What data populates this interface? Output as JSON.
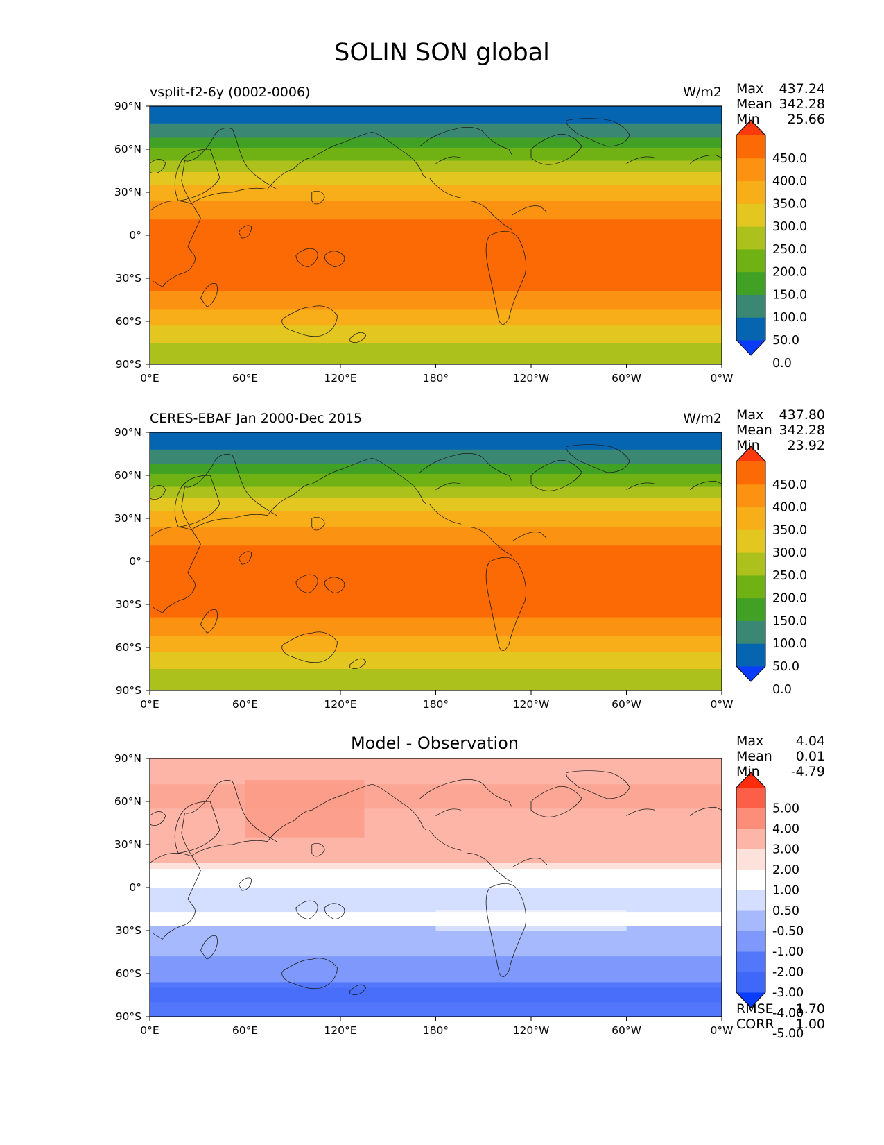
{
  "figure_title": "SOLIN SON global",
  "chart_data": [
    {
      "type": "heatmap",
      "name": "test",
      "title_left": "vsplit-f2-6y (0002-0006)",
      "units": "W/m2",
      "stats": [
        {
          "label": "Max",
          "value": "437.24"
        },
        {
          "label": "Mean",
          "value": "342.28"
        },
        {
          "label": "Min",
          "value": "25.66"
        }
      ],
      "x_ticks": [
        "0°E",
        "60°E",
        "120°E",
        "180°",
        "120°W",
        "60°W",
        "0°W"
      ],
      "y_ticks": [
        "90°N",
        "60°N",
        "30°N",
        "0°",
        "30°S",
        "60°S",
        "90°S"
      ],
      "lat_range": [
        -90,
        90
      ],
      "bands": [
        {
          "lat_top": 90,
          "lat_bottom": 78,
          "color": "#0565b0"
        },
        {
          "lat_top": 78,
          "lat_bottom": 68,
          "color": "#3a8873"
        },
        {
          "lat_top": 68,
          "lat_bottom": 61,
          "color": "#41a125"
        },
        {
          "lat_top": 61,
          "lat_bottom": 52,
          "color": "#70b114"
        },
        {
          "lat_top": 52,
          "lat_bottom": 44,
          "color": "#adc11c"
        },
        {
          "lat_top": 44,
          "lat_bottom": 35,
          "color": "#e4c620"
        },
        {
          "lat_top": 35,
          "lat_bottom": 24,
          "color": "#f8ae18"
        },
        {
          "lat_top": 24,
          "lat_bottom": 11,
          "color": "#fb9211"
        },
        {
          "lat_top": 11,
          "lat_bottom": -39,
          "color": "#fb6a04"
        },
        {
          "lat_top": -39,
          "lat_bottom": -52,
          "color": "#fb9211"
        },
        {
          "lat_top": -52,
          "lat_bottom": -63,
          "color": "#f8ae18"
        },
        {
          "lat_top": -63,
          "lat_bottom": -75,
          "color": "#e4c620"
        },
        {
          "lat_top": -75,
          "lat_bottom": -90,
          "color": "#adc11c"
        }
      ],
      "colorbar": {
        "labels": [
          "450.0",
          "400.0",
          "350.0",
          "300.0",
          "250.0",
          "200.0",
          "150.0",
          "100.0",
          "50.0",
          "0.0"
        ],
        "colors": [
          "#0a3cfb",
          "#0565b0",
          "#3a8873",
          "#41a125",
          "#70b114",
          "#adc11c",
          "#e4c620",
          "#f8ae18",
          "#fb9211",
          "#fb6a04",
          "#fd3a0e"
        ]
      }
    },
    {
      "type": "heatmap",
      "name": "reference",
      "title_left": "CERES-EBAF Jan 2000-Dec 2015",
      "units": "W/m2",
      "stats": [
        {
          "label": "Max",
          "value": "437.80"
        },
        {
          "label": "Mean",
          "value": "342.28"
        },
        {
          "label": "Min",
          "value": "23.92"
        }
      ],
      "x_ticks": [
        "0°E",
        "60°E",
        "120°E",
        "180°",
        "120°W",
        "60°W",
        "0°W"
      ],
      "y_ticks": [
        "90°N",
        "60°N",
        "30°N",
        "0°",
        "30°S",
        "60°S",
        "90°S"
      ],
      "lat_range": [
        -90,
        90
      ],
      "bands": [
        {
          "lat_top": 90,
          "lat_bottom": 78,
          "color": "#0565b0"
        },
        {
          "lat_top": 78,
          "lat_bottom": 68,
          "color": "#3a8873"
        },
        {
          "lat_top": 68,
          "lat_bottom": 61,
          "color": "#41a125"
        },
        {
          "lat_top": 61,
          "lat_bottom": 52,
          "color": "#70b114"
        },
        {
          "lat_top": 52,
          "lat_bottom": 44,
          "color": "#adc11c"
        },
        {
          "lat_top": 44,
          "lat_bottom": 35,
          "color": "#e4c620"
        },
        {
          "lat_top": 35,
          "lat_bottom": 24,
          "color": "#f8ae18"
        },
        {
          "lat_top": 24,
          "lat_bottom": 11,
          "color": "#fb9211"
        },
        {
          "lat_top": 11,
          "lat_bottom": -39,
          "color": "#fb6a04"
        },
        {
          "lat_top": -39,
          "lat_bottom": -52,
          "color": "#fb9211"
        },
        {
          "lat_top": -52,
          "lat_bottom": -63,
          "color": "#f8ae18"
        },
        {
          "lat_top": -63,
          "lat_bottom": -75,
          "color": "#e4c620"
        },
        {
          "lat_top": -75,
          "lat_bottom": -90,
          "color": "#adc11c"
        }
      ],
      "colorbar": {
        "labels": [
          "450.0",
          "400.0",
          "350.0",
          "300.0",
          "250.0",
          "200.0",
          "150.0",
          "100.0",
          "50.0",
          "0.0"
        ],
        "colors": [
          "#0a3cfb",
          "#0565b0",
          "#3a8873",
          "#41a125",
          "#70b114",
          "#adc11c",
          "#e4c620",
          "#f8ae18",
          "#fb9211",
          "#fb6a04",
          "#fd3a0e"
        ]
      }
    },
    {
      "type": "heatmap",
      "name": "difference",
      "title_center": "Model - Observation",
      "stats": [
        {
          "label": "Max",
          "value": "4.04"
        },
        {
          "label": "Mean",
          "value": "0.01"
        },
        {
          "label": "Min",
          "value": "-4.79"
        }
      ],
      "extra_stats": [
        {
          "label": "RMSE",
          "value": "1.70"
        },
        {
          "label": "CORR",
          "value": "1.00"
        }
      ],
      "x_ticks": [
        "0°E",
        "60°E",
        "120°E",
        "180°",
        "120°W",
        "60°W",
        "0°W"
      ],
      "y_ticks": [
        "90°N",
        "60°N",
        "30°N",
        "0°",
        "30°S",
        "60°S",
        "90°S"
      ],
      "lat_range": [
        -90,
        90
      ],
      "bands": [
        {
          "lat_top": 90,
          "lat_bottom": 17,
          "color": "#fcb5a6"
        },
        {
          "lat_top": 17,
          "lat_bottom": 13,
          "color": "#fde2dc"
        },
        {
          "lat_top": 13,
          "lat_bottom": 0,
          "color": "#ffffff"
        },
        {
          "lat_top": 0,
          "lat_bottom": -17,
          "color": "#d4defe"
        },
        {
          "lat_top": -17,
          "lat_bottom": -27,
          "color": "#ffffff"
        },
        {
          "lat_top": -27,
          "lat_bottom": -48,
          "color": "#a7b9fd"
        },
        {
          "lat_top": -48,
          "lat_bottom": -66,
          "color": "#7e98fb"
        },
        {
          "lat_top": -66,
          "lat_bottom": -90,
          "color": "#5277fa"
        }
      ],
      "patches": [
        {
          "lon_min": 60,
          "lon_max": 135,
          "lat_min": 35,
          "lat_max": 75,
          "color": "#fc8d78"
        },
        {
          "lon_min": 0,
          "lon_max": 360,
          "lat_min": 55,
          "lat_max": 72,
          "color": "#fc9a86"
        },
        {
          "lon_min": 180,
          "lon_max": 300,
          "lat_min": -30,
          "lat_max": -16,
          "color": "#ffffff"
        },
        {
          "lon_min": 0,
          "lon_max": 360,
          "lat_min": -80,
          "lat_max": -70,
          "color": "#3f68f9"
        }
      ],
      "colorbar": {
        "labels": [
          "5.00",
          "4.00",
          "3.00",
          "2.00",
          "1.00",
          "0.50",
          "-0.50",
          "-1.00",
          "-2.00",
          "-3.00",
          "-4.00",
          "-5.00"
        ],
        "colors": [
          "#0a3cfb",
          "#3f68f9",
          "#5277fa",
          "#7e98fb",
          "#a7b9fd",
          "#d4defe",
          "#ffffff",
          "#fde2dc",
          "#fcb5a6",
          "#fc8d78",
          "#fc5f48",
          "#fd2c0a"
        ]
      }
    }
  ]
}
